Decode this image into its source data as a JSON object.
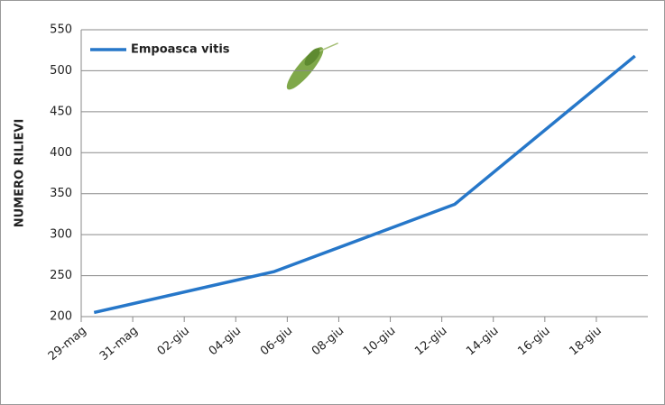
{
  "chart_data": {
    "type": "line",
    "y_label": "NUMERO RILIEVI",
    "x": [
      0.5,
      7.5,
      14.5,
      21.5
    ],
    "series": [
      {
        "name": "Empoasca vitis",
        "color": "#2677c9",
        "values": [
          205,
          255,
          337,
          518
        ]
      }
    ],
    "xlim": [
      0,
      22
    ],
    "xticks": [
      {
        "value": 0,
        "label": "29-mag"
      },
      {
        "value": 2,
        "label": "31-mag"
      },
      {
        "value": 4,
        "label": "02-giu"
      },
      {
        "value": 6,
        "label": "04-giu"
      },
      {
        "value": 8,
        "label": "06-giu"
      },
      {
        "value": 10,
        "label": "08-giu"
      },
      {
        "value": 12,
        "label": "10-giu"
      },
      {
        "value": 14,
        "label": "12-giu"
      },
      {
        "value": 16,
        "label": "14-giu"
      },
      {
        "value": 18,
        "label": "16-giu"
      },
      {
        "value": 20,
        "label": "18-giu"
      }
    ],
    "ylim": [
      200,
      550
    ],
    "yticks": [
      200,
      250,
      300,
      350,
      400,
      450,
      500,
      550
    ],
    "grid": true,
    "legend": "top-left"
  }
}
